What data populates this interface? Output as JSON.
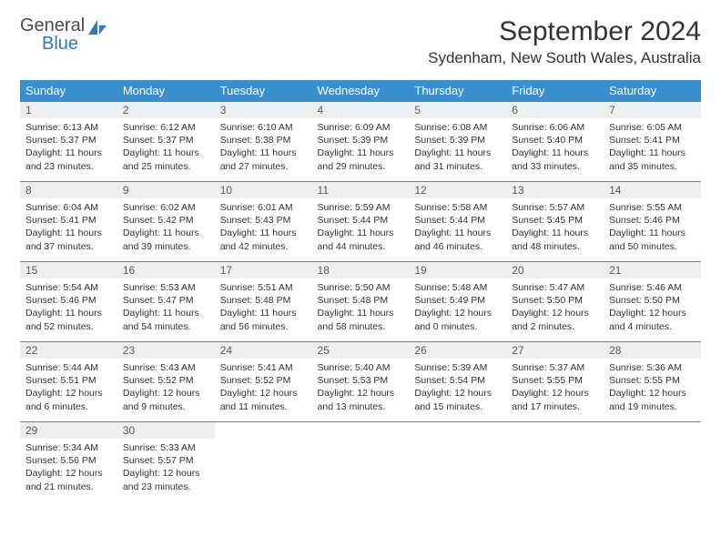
{
  "logo": {
    "top": "General",
    "bottom": "Blue"
  },
  "title": "September 2024",
  "location": "Sydenham, New South Wales, Australia",
  "daynames": [
    "Sunday",
    "Monday",
    "Tuesday",
    "Wednesday",
    "Thursday",
    "Friday",
    "Saturday"
  ],
  "colors": {
    "header_bg": "#3a8fce",
    "header_fg": "#ffffff",
    "rule": "#3a8fce",
    "daynum_bg": "#eceeef",
    "logo_accent": "#2d7bc0"
  },
  "weeks": [
    [
      {
        "n": "1",
        "sr": "Sunrise: 6:13 AM",
        "ss": "Sunset: 5:37 PM",
        "d1": "Daylight: 11 hours",
        "d2": "and 23 minutes."
      },
      {
        "n": "2",
        "sr": "Sunrise: 6:12 AM",
        "ss": "Sunset: 5:37 PM",
        "d1": "Daylight: 11 hours",
        "d2": "and 25 minutes."
      },
      {
        "n": "3",
        "sr": "Sunrise: 6:10 AM",
        "ss": "Sunset: 5:38 PM",
        "d1": "Daylight: 11 hours",
        "d2": "and 27 minutes."
      },
      {
        "n": "4",
        "sr": "Sunrise: 6:09 AM",
        "ss": "Sunset: 5:39 PM",
        "d1": "Daylight: 11 hours",
        "d2": "and 29 minutes."
      },
      {
        "n": "5",
        "sr": "Sunrise: 6:08 AM",
        "ss": "Sunset: 5:39 PM",
        "d1": "Daylight: 11 hours",
        "d2": "and 31 minutes."
      },
      {
        "n": "6",
        "sr": "Sunrise: 6:06 AM",
        "ss": "Sunset: 5:40 PM",
        "d1": "Daylight: 11 hours",
        "d2": "and 33 minutes."
      },
      {
        "n": "7",
        "sr": "Sunrise: 6:05 AM",
        "ss": "Sunset: 5:41 PM",
        "d1": "Daylight: 11 hours",
        "d2": "and 35 minutes."
      }
    ],
    [
      {
        "n": "8",
        "sr": "Sunrise: 6:04 AM",
        "ss": "Sunset: 5:41 PM",
        "d1": "Daylight: 11 hours",
        "d2": "and 37 minutes."
      },
      {
        "n": "9",
        "sr": "Sunrise: 6:02 AM",
        "ss": "Sunset: 5:42 PM",
        "d1": "Daylight: 11 hours",
        "d2": "and 39 minutes."
      },
      {
        "n": "10",
        "sr": "Sunrise: 6:01 AM",
        "ss": "Sunset: 5:43 PM",
        "d1": "Daylight: 11 hours",
        "d2": "and 42 minutes."
      },
      {
        "n": "11",
        "sr": "Sunrise: 5:59 AM",
        "ss": "Sunset: 5:44 PM",
        "d1": "Daylight: 11 hours",
        "d2": "and 44 minutes."
      },
      {
        "n": "12",
        "sr": "Sunrise: 5:58 AM",
        "ss": "Sunset: 5:44 PM",
        "d1": "Daylight: 11 hours",
        "d2": "and 46 minutes."
      },
      {
        "n": "13",
        "sr": "Sunrise: 5:57 AM",
        "ss": "Sunset: 5:45 PM",
        "d1": "Daylight: 11 hours",
        "d2": "and 48 minutes."
      },
      {
        "n": "14",
        "sr": "Sunrise: 5:55 AM",
        "ss": "Sunset: 5:46 PM",
        "d1": "Daylight: 11 hours",
        "d2": "and 50 minutes."
      }
    ],
    [
      {
        "n": "15",
        "sr": "Sunrise: 5:54 AM",
        "ss": "Sunset: 5:46 PM",
        "d1": "Daylight: 11 hours",
        "d2": "and 52 minutes."
      },
      {
        "n": "16",
        "sr": "Sunrise: 5:53 AM",
        "ss": "Sunset: 5:47 PM",
        "d1": "Daylight: 11 hours",
        "d2": "and 54 minutes."
      },
      {
        "n": "17",
        "sr": "Sunrise: 5:51 AM",
        "ss": "Sunset: 5:48 PM",
        "d1": "Daylight: 11 hours",
        "d2": "and 56 minutes."
      },
      {
        "n": "18",
        "sr": "Sunrise: 5:50 AM",
        "ss": "Sunset: 5:48 PM",
        "d1": "Daylight: 11 hours",
        "d2": "and 58 minutes."
      },
      {
        "n": "19",
        "sr": "Sunrise: 5:48 AM",
        "ss": "Sunset: 5:49 PM",
        "d1": "Daylight: 12 hours",
        "d2": "and 0 minutes."
      },
      {
        "n": "20",
        "sr": "Sunrise: 5:47 AM",
        "ss": "Sunset: 5:50 PM",
        "d1": "Daylight: 12 hours",
        "d2": "and 2 minutes."
      },
      {
        "n": "21",
        "sr": "Sunrise: 5:46 AM",
        "ss": "Sunset: 5:50 PM",
        "d1": "Daylight: 12 hours",
        "d2": "and 4 minutes."
      }
    ],
    [
      {
        "n": "22",
        "sr": "Sunrise: 5:44 AM",
        "ss": "Sunset: 5:51 PM",
        "d1": "Daylight: 12 hours",
        "d2": "and 6 minutes."
      },
      {
        "n": "23",
        "sr": "Sunrise: 5:43 AM",
        "ss": "Sunset: 5:52 PM",
        "d1": "Daylight: 12 hours",
        "d2": "and 9 minutes."
      },
      {
        "n": "24",
        "sr": "Sunrise: 5:41 AM",
        "ss": "Sunset: 5:52 PM",
        "d1": "Daylight: 12 hours",
        "d2": "and 11 minutes."
      },
      {
        "n": "25",
        "sr": "Sunrise: 5:40 AM",
        "ss": "Sunset: 5:53 PM",
        "d1": "Daylight: 12 hours",
        "d2": "and 13 minutes."
      },
      {
        "n": "26",
        "sr": "Sunrise: 5:39 AM",
        "ss": "Sunset: 5:54 PM",
        "d1": "Daylight: 12 hours",
        "d2": "and 15 minutes."
      },
      {
        "n": "27",
        "sr": "Sunrise: 5:37 AM",
        "ss": "Sunset: 5:55 PM",
        "d1": "Daylight: 12 hours",
        "d2": "and 17 minutes."
      },
      {
        "n": "28",
        "sr": "Sunrise: 5:36 AM",
        "ss": "Sunset: 5:55 PM",
        "d1": "Daylight: 12 hours",
        "d2": "and 19 minutes."
      }
    ],
    [
      {
        "n": "29",
        "sr": "Sunrise: 5:34 AM",
        "ss": "Sunset: 5:56 PM",
        "d1": "Daylight: 12 hours",
        "d2": "and 21 minutes."
      },
      {
        "n": "30",
        "sr": "Sunrise: 5:33 AM",
        "ss": "Sunset: 5:57 PM",
        "d1": "Daylight: 12 hours",
        "d2": "and 23 minutes."
      },
      null,
      null,
      null,
      null,
      null
    ]
  ]
}
